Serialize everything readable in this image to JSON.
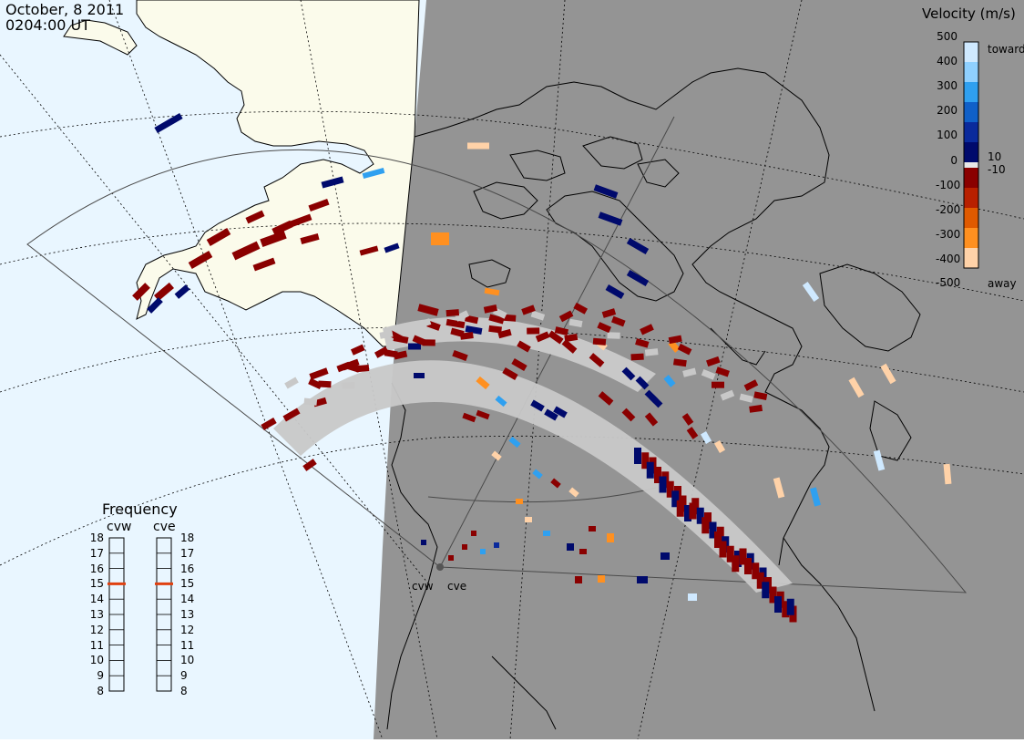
{
  "header": {
    "date": "October, 8 2011",
    "time": "0204:00 UT"
  },
  "velocity_scale": {
    "title": "Velocity (m/s)",
    "toward_label": "toward",
    "away_label": "away",
    "ticks": [
      "500",
      "400",
      "300",
      "200",
      "100",
      "10",
      "0",
      "-10",
      "-100",
      "-200",
      "-300",
      "-400",
      "-500"
    ],
    "colors": [
      "#cfe9ff",
      "#8fd0ff",
      "#2fa0f0",
      "#1060c8",
      "#0a2a9c",
      "#000a6c",
      "#e8e8e8",
      "#8a0000",
      "#b82000",
      "#e05a00",
      "#ff9020",
      "#ffd2a8"
    ]
  },
  "frequency_panel": {
    "title": "Frequency",
    "radars": [
      {
        "name": "cvw",
        "frequency_mhz": 15
      },
      {
        "name": "cve",
        "frequency_mhz": 15
      }
    ],
    "scale": [
      "18",
      "17",
      "16",
      "15",
      "14",
      "13",
      "12",
      "11",
      "10",
      "9",
      "8"
    ]
  },
  "radar_sites": [
    {
      "name": "cvw"
    },
    {
      "name": "cve"
    }
  ],
  "map_colors": {
    "ocean_day": "#e9f6ff",
    "land_day": "#fbfbeb",
    "night": "#949494",
    "gnd_scatter": "#c8c8c8"
  },
  "legend_colors": {
    "frequency_marker": "#e04010"
  }
}
